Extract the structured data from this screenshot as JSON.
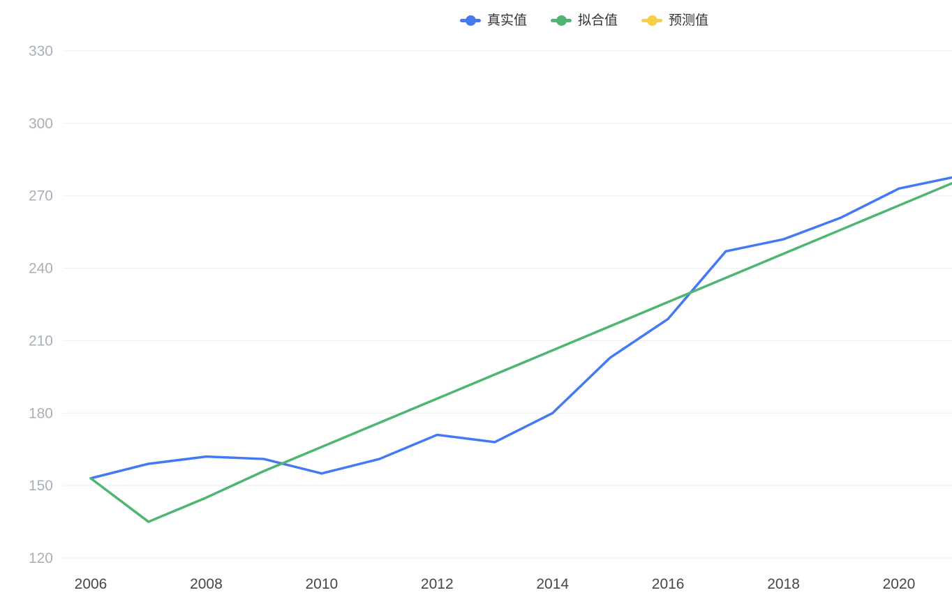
{
  "chart_data": {
    "type": "line",
    "title": "",
    "xlabel": "",
    "ylabel": "",
    "x": [
      2006,
      2007,
      2008,
      2009,
      2010,
      2011,
      2012,
      2013,
      2014,
      2015,
      2016,
      2017,
      2018,
      2019,
      2020,
      2021
    ],
    "series": [
      {
        "name": "真实值",
        "key": "actual",
        "color": "#4379F2",
        "values": [
          153,
          159,
          162,
          161,
          155,
          161,
          171,
          168,
          180,
          203,
          219,
          247,
          252,
          261,
          273,
          278
        ]
      },
      {
        "name": "拟合值",
        "key": "fitted",
        "color": "#4FB573",
        "values": [
          153,
          135,
          145,
          156,
          166,
          176,
          186,
          196,
          206,
          216,
          226,
          236,
          246,
          256,
          266,
          276
        ]
      },
      {
        "name": "预测值",
        "key": "predicted",
        "color": "#F6CF45",
        "values": []
      }
    ],
    "y_ticks": [
      120,
      150,
      180,
      210,
      240,
      270,
      300,
      330
    ],
    "x_ticks": [
      2006,
      2008,
      2010,
      2012,
      2014,
      2016,
      2018,
      2020
    ],
    "ylim": [
      120,
      330
    ],
    "grid": "horizontal",
    "gridline_color": "#ecedf0",
    "legend_position": "top-center"
  }
}
